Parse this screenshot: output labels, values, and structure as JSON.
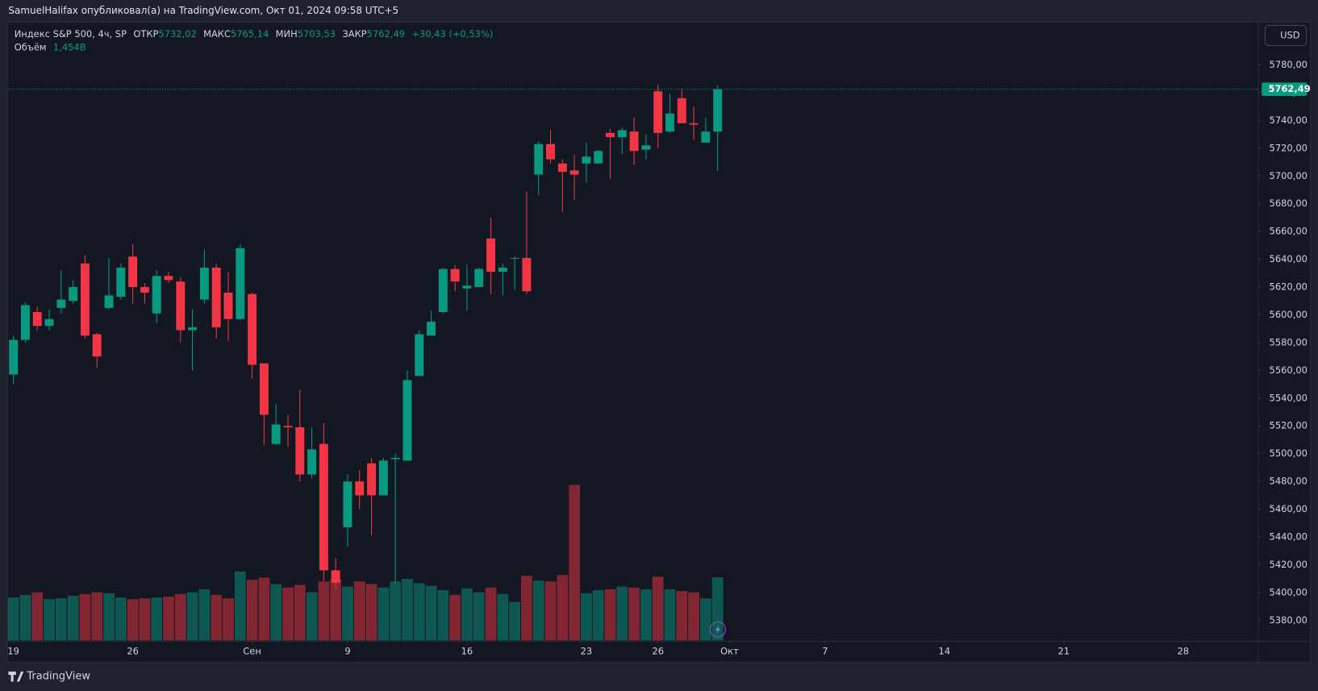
{
  "header": {
    "publisher": "SamuelHalifax опубликовал(а) на TradingView.com, Окт 01, 2024 09:58 UTC+5"
  },
  "legend": {
    "symbol": "Индекс S&P 500, 4ч, SP",
    "open_label": "ОТКР",
    "open_value": "5732,02",
    "high_label": "МАКС",
    "high_value": "5765,14",
    "low_label": "МИН",
    "low_value": "5703,53",
    "close_label": "ЗАКР",
    "close_value": "5762,49",
    "change": "+30,43 (+0,53%)",
    "volume_label": "Объём",
    "volume_value": "1,454B"
  },
  "currency": "USD",
  "footer": {
    "brand": "TradingView"
  },
  "chart_data": {
    "type": "candlestick",
    "up_color": "#089981",
    "down_color": "#f23645",
    "xlim": [
      -0.42,
      104.3
    ],
    "xticks": [
      {
        "value": 0,
        "label": "19"
      },
      {
        "value": 10,
        "label": "26"
      },
      {
        "value": 20,
        "label": "Сен"
      },
      {
        "value": 28,
        "label": "9"
      },
      {
        "value": 38,
        "label": "16"
      },
      {
        "value": 48,
        "label": "23"
      },
      {
        "value": 54,
        "label": "26"
      },
      {
        "value": 60,
        "label": "Окт"
      },
      {
        "value": 68,
        "label": "7"
      },
      {
        "value": 78,
        "label": "14"
      },
      {
        "value": 88,
        "label": "21"
      },
      {
        "value": 98,
        "label": "28"
      }
    ],
    "ylim": [
      5365.5,
      5810.3
    ],
    "yticks": [
      {
        "value": 5380,
        "label": "5380,00"
      },
      {
        "value": 5400,
        "label": "5400,00"
      },
      {
        "value": 5420,
        "label": "5420,00"
      },
      {
        "value": 5440,
        "label": "5440,00"
      },
      {
        "value": 5460,
        "label": "5460,00"
      },
      {
        "value": 5480,
        "label": "5480,00"
      },
      {
        "value": 5500,
        "label": "5500,00"
      },
      {
        "value": 5520,
        "label": "5520,00"
      },
      {
        "value": 5540,
        "label": "5540,00"
      },
      {
        "value": 5560,
        "label": "5560,00"
      },
      {
        "value": 5580,
        "label": "5580,00"
      },
      {
        "value": 5600,
        "label": "5600,00"
      },
      {
        "value": 5620,
        "label": "5620,00"
      },
      {
        "value": 5640,
        "label": "5640,00"
      },
      {
        "value": 5660,
        "label": "5660,00"
      },
      {
        "value": 5680,
        "label": "5680,00"
      },
      {
        "value": 5700,
        "label": "5700,00"
      },
      {
        "value": 5720,
        "label": "5720,00"
      },
      {
        "value": 5740,
        "label": "5740,00"
      },
      {
        "value": 5760,
        "label": "5760,00"
      },
      {
        "value": 5780,
        "label": "5780,00"
      }
    ],
    "last_price": 5762.49,
    "last_price_label": "5762,49",
    "open": [
      5557,
      5582,
      5602,
      5592,
      5605,
      5610,
      5637,
      5586,
      5605,
      5613,
      5642,
      5620,
      5601,
      5628,
      5624,
      5589,
      5611,
      5634,
      5616,
      5597,
      5615,
      5565,
      5507,
      5520,
      5519,
      5485,
      5507,
      5416,
      5447,
      5480,
      5493,
      5470,
      5496,
      5495,
      5556,
      5585,
      5602,
      5633,
      5619,
      5620,
      5655,
      5631,
      5641,
      5641,
      5701,
      5723,
      5709,
      5704,
      5709,
      5709,
      5731,
      5728,
      5732,
      5719,
      5761,
      5732,
      5756,
      5738,
      5724,
      5732.02
    ],
    "high": [
      5585,
      5609,
      5606,
      5604,
      5632,
      5625,
      5643,
      5587,
      5641,
      5637,
      5651,
      5623,
      5632,
      5631,
      5627,
      5604,
      5647,
      5637,
      5631,
      5651,
      5616,
      5565,
      5536,
      5528,
      5546,
      5519,
      5522,
      5425,
      5485,
      5488,
      5497,
      5497,
      5500,
      5560,
      5589,
      5603,
      5634,
      5636,
      5636,
      5634,
      5670,
      5637,
      5642,
      5689,
      5725,
      5733,
      5712,
      5715,
      5724,
      5719,
      5734,
      5735,
      5742,
      5730,
      5766,
      5759,
      5763,
      5750,
      5742,
      5765.14
    ],
    "low": [
      5550,
      5580,
      5589,
      5589,
      5601,
      5608,
      5583,
      5562,
      5604,
      5611,
      5608,
      5608,
      5594,
      5623,
      5580,
      5560,
      5608,
      5583,
      5581,
      5596,
      5554,
      5506,
      5506,
      5505,
      5480,
      5482,
      5408,
      5403,
      5433,
      5460,
      5441,
      5470,
      5407,
      5495,
      5556,
      5585,
      5601,
      5617,
      5603,
      5620,
      5615,
      5614,
      5618,
      5615,
      5686,
      5709,
      5674,
      5683,
      5695,
      5709,
      5698,
      5716,
      5708,
      5712,
      5720,
      5731,
      5738,
      5726,
      5725,
      5703.53
    ],
    "close": [
      5582,
      5607,
      5592,
      5597,
      5611,
      5620,
      5585,
      5570,
      5614,
      5634,
      5620,
      5616,
      5628,
      5625,
      5589,
      5591,
      5634,
      5591,
      5597,
      5648,
      5564,
      5528,
      5521,
      5519,
      5485,
      5503,
      5416,
      5407,
      5480,
      5470,
      5470,
      5495,
      5497,
      5553,
      5586,
      5595,
      5633,
      5624,
      5621,
      5633,
      5631,
      5634,
      5641,
      5617,
      5723,
      5712,
      5703,
      5701,
      5714,
      5718,
      5728,
      5733,
      5718,
      5722,
      5731,
      5745,
      5738,
      5737,
      5732,
      5762.49
    ],
    "volume": [
      0.99,
      1.05,
      1.11,
      0.95,
      0.97,
      1.03,
      1.07,
      1.11,
      1.09,
      0.99,
      0.95,
      0.97,
      0.99,
      1.01,
      1.07,
      1.11,
      1.18,
      1.05,
      0.97,
      1.59,
      1.4,
      1.45,
      1.3,
      1.22,
      1.28,
      1.11,
      1.36,
      1.4,
      1.24,
      1.36,
      1.3,
      1.22,
      1.36,
      1.42,
      1.32,
      1.26,
      1.16,
      1.05,
      1.2,
      1.11,
      1.22,
      1.07,
      0.89,
      1.49,
      1.38,
      1.36,
      1.51,
      3.59,
      1.09,
      1.16,
      1.18,
      1.24,
      1.22,
      1.18,
      1.47,
      1.18,
      1.14,
      1.11,
      0.97,
      1.454
    ],
    "volume_lim": [
      0,
      14.25
    ]
  }
}
